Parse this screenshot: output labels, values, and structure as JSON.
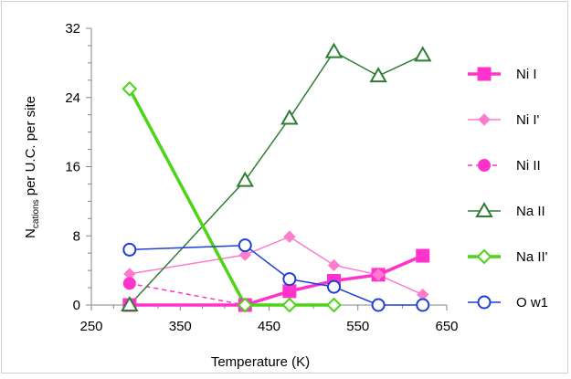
{
  "chart_data": {
    "type": "scatter",
    "xlabel": "Temperature (K)",
    "ylabel": {
      "main": "N",
      "subscript": "cations",
      "rest": " per U.C. per site"
    },
    "xlim": [
      250,
      650
    ],
    "ylim": [
      0,
      32
    ],
    "xticks": [
      "250",
      "350",
      "450",
      "550",
      "650"
    ],
    "yticks": [
      "0",
      "8",
      "16",
      "24",
      "32"
    ],
    "x_minor_step": 25,
    "y_minor_step": 2,
    "grid": false,
    "legend_position": "right",
    "series": [
      {
        "name": "Ni I",
        "color": "#ff33cc",
        "marker": "square-filled",
        "line": "solid",
        "line_width": 3.5,
        "points": [
          [
            293,
            0
          ],
          [
            423,
            0
          ],
          [
            473,
            1.6
          ],
          [
            523,
            2.8
          ],
          [
            573,
            3.5
          ],
          [
            623,
            5.7
          ]
        ]
      },
      {
        "name": "Ni I'",
        "color": "#ff7ccc",
        "marker": "diamond-filled",
        "line": "solid",
        "line_width": 1.5,
        "points": [
          [
            293,
            3.6
          ],
          [
            423,
            5.8
          ],
          [
            473,
            7.9
          ],
          [
            523,
            4.6
          ],
          [
            573,
            3.5
          ],
          [
            623,
            1.2
          ]
        ]
      },
      {
        "name": "Ni II",
        "color": "#ff33cc",
        "marker": "circle-filled",
        "line": "dashed",
        "line_width": 1.5,
        "points": [
          [
            293,
            2.5
          ],
          [
            423,
            0
          ]
        ]
      },
      {
        "name": "Na II",
        "color": "#2e7d32",
        "marker": "triangle-open",
        "line": "solid",
        "line_width": 1.5,
        "points": [
          [
            293,
            0
          ],
          [
            423,
            14.4
          ],
          [
            473,
            21.6
          ],
          [
            523,
            29.3
          ],
          [
            573,
            26.5
          ],
          [
            623,
            28.9
          ]
        ]
      },
      {
        "name": "Na II'",
        "color": "#4cd417",
        "marker": "diamond-open",
        "line": "solid",
        "line_width": 3.5,
        "points": [
          [
            293,
            25
          ],
          [
            423,
            0
          ],
          [
            473,
            0
          ],
          [
            523,
            0
          ]
        ]
      },
      {
        "name": "O w1",
        "color": "#1f3fd6",
        "marker": "circle-open",
        "line": "solid",
        "line_width": 1.5,
        "points": [
          [
            293,
            6.4
          ],
          [
            423,
            6.9
          ],
          [
            473,
            3
          ],
          [
            523,
            2.1
          ],
          [
            573,
            0
          ],
          [
            623,
            0
          ]
        ]
      }
    ]
  }
}
